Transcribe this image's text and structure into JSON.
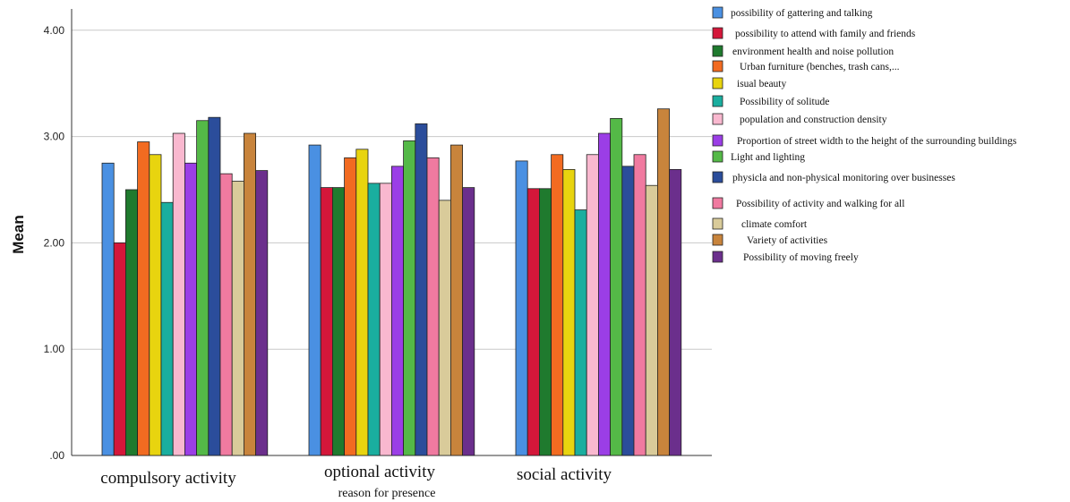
{
  "chart_data": {
    "type": "bar",
    "ylabel": "Mean",
    "xlabel": "reason for presence",
    "ylim": [
      0,
      4.2
    ],
    "yticks": [
      ".00",
      "1.00",
      "2.00",
      "3.00",
      "4.00"
    ],
    "grid": true,
    "legend_position": "right",
    "categories": [
      "compulsory activity",
      "optional activity",
      "social activity"
    ],
    "series": [
      {
        "name": "possibility of gattering and talking",
        "color": "#4a90e2",
        "values": [
          2.75,
          2.92,
          2.77
        ]
      },
      {
        "name": "possibility to attend with family and friends",
        "color": "#d4173a",
        "values": [
          2.0,
          2.52,
          2.51
        ]
      },
      {
        "name": "environment health and noise pollution",
        "color": "#1f7a2e",
        "values": [
          2.5,
          2.52,
          2.51
        ]
      },
      {
        "name": "Urban furniture (benches, trash cans,...",
        "color": "#f26b21",
        "values": [
          2.95,
          2.8,
          2.83
        ]
      },
      {
        "name": "isual beauty",
        "color": "#e8d40f",
        "values": [
          2.83,
          2.88,
          2.69
        ]
      },
      {
        "name": "Possibility of solitude",
        "color": "#1aae9f",
        "values": [
          2.38,
          2.56,
          2.31
        ]
      },
      {
        "name": "population and construction density",
        "color": "#f9b8cf",
        "values": [
          3.03,
          2.56,
          2.83
        ]
      },
      {
        "name": "Proportion of street width to the height of the surrounding buildings",
        "color": "#9b3ee6",
        "values": [
          2.75,
          2.72,
          3.03
        ]
      },
      {
        "name": "Light and lighting",
        "color": "#54b947",
        "values": [
          3.15,
          2.96,
          3.17
        ]
      },
      {
        "name": "physicla and non-physical monitoring over businesses",
        "color": "#2b4d9b",
        "values": [
          3.18,
          3.12,
          2.72
        ]
      },
      {
        "name": "Possibility of activity and walking for all",
        "color": "#f07aa0",
        "values": [
          2.65,
          2.8,
          2.83
        ]
      },
      {
        "name": "climate comfort",
        "color": "#d9cb9a",
        "values": [
          2.58,
          2.4,
          2.54
        ]
      },
      {
        "name": "Variety of activities",
        "color": "#c8843c",
        "values": [
          3.03,
          2.92,
          3.26
        ]
      },
      {
        "name": "Possibility of moving freely",
        "color": "#6b2f8c",
        "values": [
          2.68,
          2.52,
          2.69
        ]
      }
    ]
  }
}
